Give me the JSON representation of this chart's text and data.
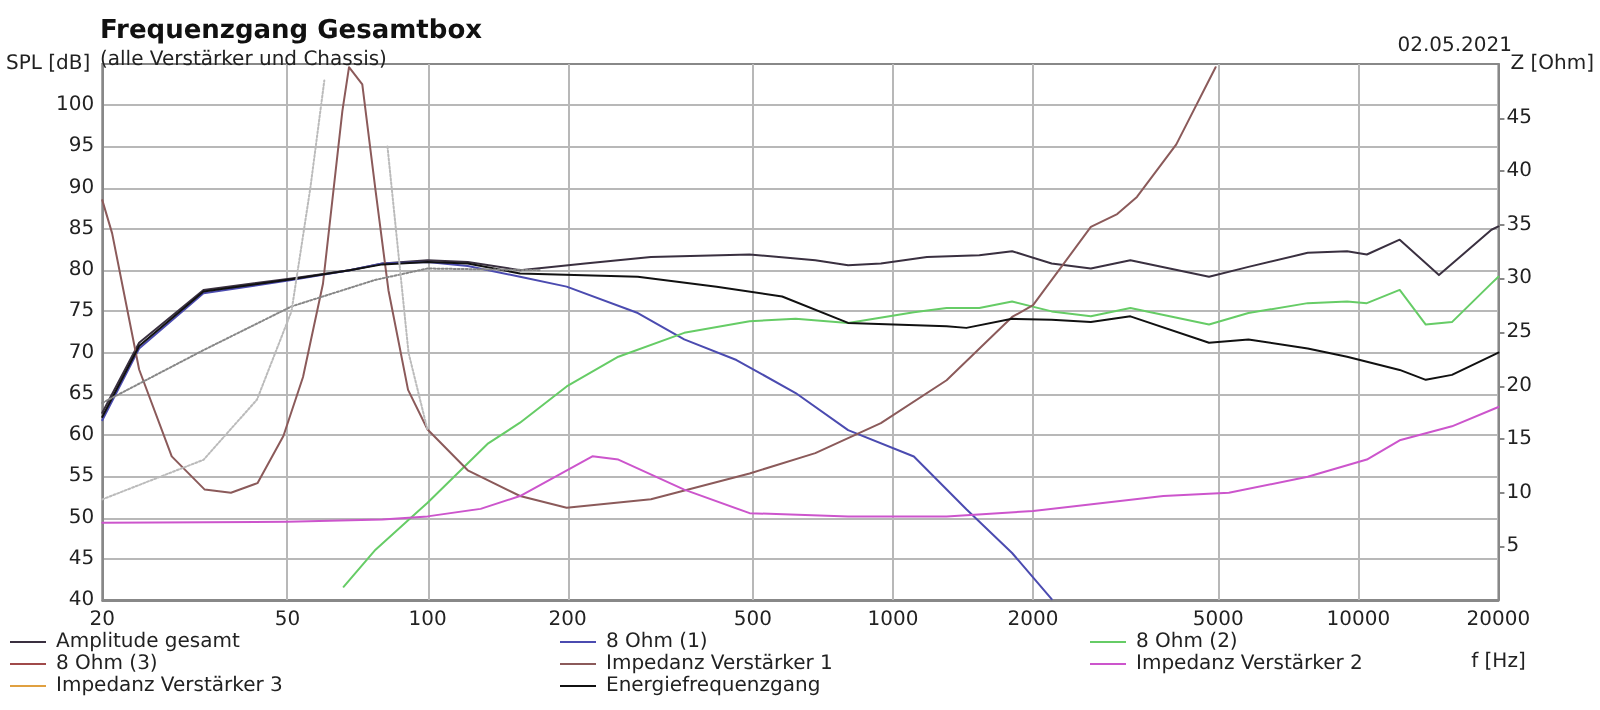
{
  "chart_data": {
    "type": "line",
    "title": "Frequenzgang Gesamtbox",
    "subtitle": "(alle Verstärker und Chassis)",
    "annotations": [
      "02.05.2021"
    ],
    "xlabel": "f [Hz]",
    "ylabel": "SPL [dB]",
    "y2label": "Z [Ohm]",
    "log": "x",
    "grid": true,
    "legend": "bottom",
    "marker": "none",
    "line_style": "solid",
    "xlim": [
      20,
      20000
    ],
    "xticks": [
      20,
      50,
      100,
      200,
      500,
      1000,
      2000,
      5000,
      10000,
      20000
    ],
    "ylim": [
      40,
      105
    ],
    "yticks": [
      40,
      45,
      50,
      55,
      60,
      65,
      70,
      75,
      80,
      85,
      90,
      95,
      100
    ],
    "y2lim": [
      0,
      50
    ],
    "y2ticks": [
      5,
      10,
      15,
      20,
      25,
      30,
      35,
      40,
      45
    ],
    "series": [
      {
        "name": "Amplitude gesamt",
        "color": "#3a3040",
        "x": [
          20,
          24,
          33,
          51,
          68,
          80,
          100,
          122,
          158,
          218,
          302,
          492,
          681,
          801,
          942,
          1183,
          1533,
          1803,
          2193,
          2662,
          3237,
          4777,
          5806,
          7784,
          9459,
          10430,
          12270,
          14900,
          19320,
          20000
        ],
        "values": [
          62.7,
          71.2,
          77.6,
          79.0,
          80.0,
          80.8,
          81.2,
          81.0,
          80.0,
          80.8,
          81.6,
          81.9,
          81.2,
          80.6,
          80.8,
          81.6,
          81.8,
          82.3,
          80.8,
          80.2,
          81.2,
          79.2,
          80.4,
          82.1,
          82.3,
          81.9,
          83.7,
          79.4,
          84.9,
          85.3
        ]
      },
      {
        "name": "8 Ohm (1)",
        "color": "#4b4bb0",
        "x": [
          20,
          24,
          33,
          51,
          68,
          80,
          100,
          122,
          158,
          199,
          283,
          356,
          461,
          618,
          801,
          1109,
          1438,
          1803,
          2193
        ],
        "values": [
          61.8,
          70.5,
          77.2,
          78.8,
          80.0,
          80.8,
          81.0,
          80.5,
          79.2,
          78.0,
          74.8,
          71.6,
          69.1,
          65.1,
          60.6,
          57.4,
          51.0,
          45.7,
          40.1
        ]
      },
      {
        "name": "8 Ohm (2)",
        "color": "#66cc66",
        "x": [
          66,
          77.3,
          100,
          135,
          158,
          199,
          257,
          356,
          492,
          618,
          801,
          1109,
          1304,
          1533,
          1803,
          2193,
          2662,
          3237,
          4777,
          5806,
          7784,
          9459,
          10430,
          12270,
          13960,
          15890,
          19320,
          20000
        ],
        "values": [
          41.6,
          46.1,
          51.8,
          59.0,
          61.5,
          65.9,
          69.5,
          72.4,
          73.8,
          74.1,
          73.6,
          74.9,
          75.4,
          75.4,
          76.2,
          75.0,
          74.4,
          75.4,
          73.4,
          74.8,
          76.0,
          76.2,
          76.0,
          77.6,
          73.4,
          73.7,
          78.4,
          79.2
        ]
      },
      {
        "name": "8 Ohm (3)",
        "color": "#a04a4a"
      },
      {
        "name": "Impedanz Verstärker 1",
        "color": "#8b5a5a",
        "axis": "y2",
        "x": [
          20,
          21,
          24,
          28.2,
          33.2,
          37.8,
          43.1,
          49,
          54,
          59.6,
          65.6,
          67.8,
          72.4,
          77.3,
          82.4,
          90.8,
          100,
          122,
          158,
          199,
          302,
          492,
          681,
          942,
          1304,
          1803,
          2000,
          2662,
          3033,
          3344,
          4063,
          4935
        ],
        "values": [
          37.3,
          34.2,
          21.5,
          13.4,
          10.3,
          10.0,
          10.9,
          15.3,
          20.8,
          29.5,
          45.6,
          49.7,
          48.1,
          38.2,
          28.9,
          19.6,
          15.9,
          12.1,
          9.7,
          8.6,
          9.4,
          11.8,
          13.7,
          16.5,
          20.5,
          26.4,
          27.5,
          34.8,
          36.0,
          37.6,
          42.5,
          49.7
        ]
      },
      {
        "name": "Impedanz Verstärker 2",
        "color": "#cc55cc",
        "axis": "y2",
        "x": [
          20,
          50,
          80,
          100,
          130,
          158,
          226,
          257,
          356,
          492,
          801,
          1304,
          2000,
          3811,
          5270,
          7784,
          10430,
          12270,
          15890,
          20000
        ],
        "values": [
          7.2,
          7.3,
          7.5,
          7.8,
          8.5,
          9.7,
          13.4,
          13.1,
          10.3,
          8.1,
          7.8,
          7.8,
          8.3,
          9.7,
          10.0,
          11.5,
          13.1,
          14.9,
          16.2,
          18.0
        ]
      },
      {
        "name": "Impedanz Verstärker 3",
        "color": "#e0a040",
        "axis": "y2"
      },
      {
        "name": "Energiefrequenzgang",
        "color": "#111111",
        "x": [
          20,
          24,
          33,
          51,
          68,
          80,
          100,
          122,
          158,
          283,
          418,
          578,
          801,
          1304,
          1438,
          1803,
          2193,
          2662,
          3237,
          4777,
          5806,
          7784,
          9459,
          12270,
          13960,
          15890,
          20000
        ],
        "values": [
          62.2,
          70.8,
          77.4,
          78.9,
          80.0,
          80.7,
          81.0,
          80.8,
          79.6,
          79.2,
          78.0,
          76.8,
          73.6,
          73.2,
          73.0,
          74.1,
          74.0,
          73.7,
          74.4,
          71.2,
          71.6,
          70.5,
          69.5,
          67.9,
          66.7,
          67.3,
          70.0
        ]
      },
      {
        "color": "#888888",
        "line_style": "dotted",
        "x": [
          20,
          33,
          51,
          77,
          100,
          174
        ],
        "values": [
          63.9,
          70.3,
          75.6,
          78.8,
          80.2,
          80.0
        ]
      },
      {
        "color": "#bbbbbb",
        "line_style": "dotted",
        "x": [
          20,
          33,
          43,
          51,
          56,
          60,
          63,
          76,
          82,
          91,
          100
        ],
        "values": [
          52.2,
          57.0,
          64.3,
          75.0,
          90.0,
          103.0,
          null,
          null,
          95.0,
          70.0,
          60.6
        ]
      }
    ]
  }
}
